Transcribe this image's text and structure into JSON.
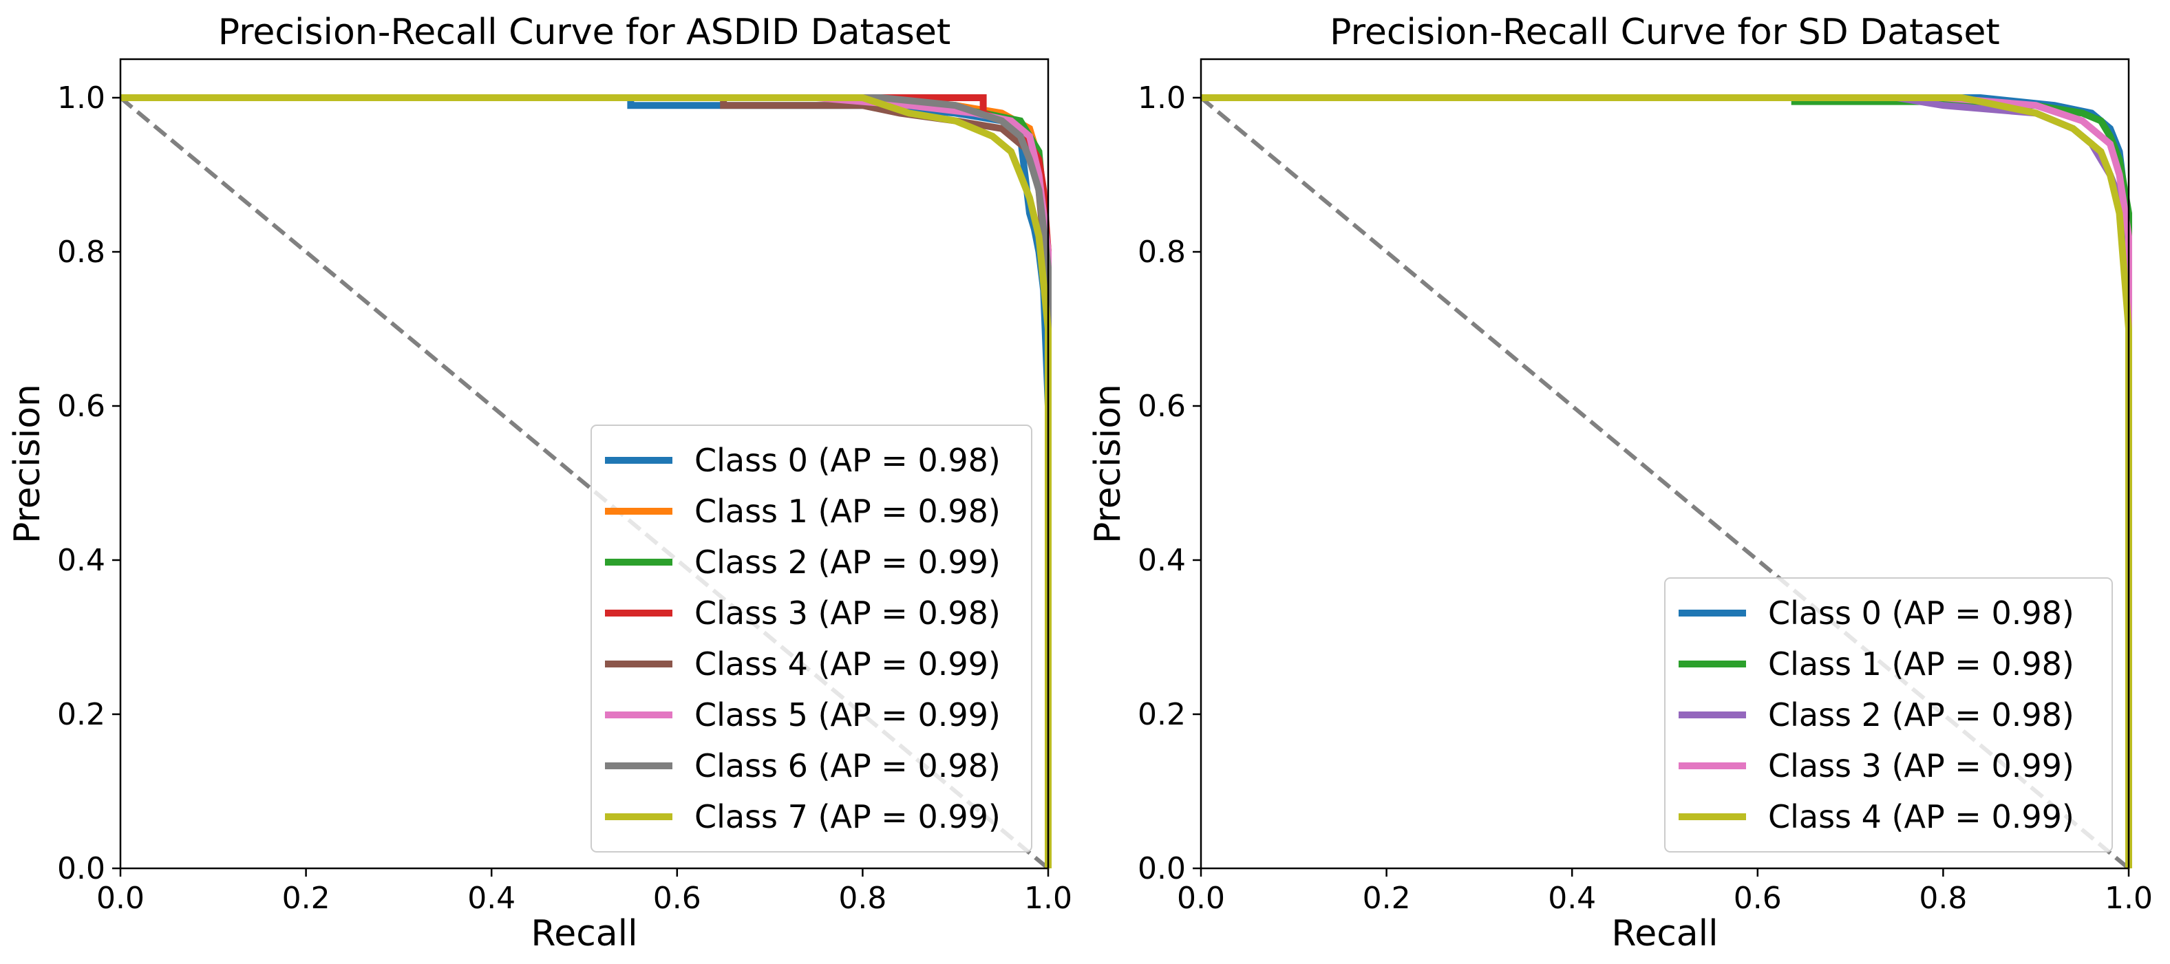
{
  "chart_data": [
    {
      "type": "line",
      "title": "Precision-Recall Curve for ASDID Dataset",
      "xlabel": "Recall",
      "ylabel": "Precision",
      "xlim": [
        0.0,
        1.0
      ],
      "ylim": [
        0.0,
        1.05
      ],
      "xticks": [
        "0.0",
        "0.2",
        "0.4",
        "0.6",
        "0.8",
        "1.0"
      ],
      "yticks": [
        "0.0",
        "0.2",
        "0.4",
        "0.6",
        "0.8",
        "1.0"
      ],
      "xtick_values": [
        0.0,
        0.2,
        0.4,
        0.6,
        0.8,
        1.0
      ],
      "ytick_values": [
        0.0,
        0.2,
        0.4,
        0.6,
        0.8,
        1.0
      ],
      "grid": false,
      "legend_position": "lower-right",
      "baseline": {
        "name": "chance",
        "style": "dashed",
        "color": "#808080",
        "x": [
          0.0,
          1.0
        ],
        "y": [
          1.0,
          0.0
        ]
      },
      "series": [
        {
          "name": "Class 0 (AP = 0.98)",
          "color": "#1f77b4",
          "x": [
            0.0,
            0.55,
            0.55,
            0.7,
            0.8,
            0.9,
            0.95,
            0.97,
            0.975,
            0.98,
            0.985,
            0.99,
            0.995,
            1.0,
            1.0
          ],
          "y": [
            1.0,
            1.0,
            0.99,
            0.99,
            0.99,
            0.98,
            0.97,
            0.95,
            0.9,
            0.85,
            0.83,
            0.8,
            0.75,
            0.6,
            0.0
          ]
        },
        {
          "name": "Class 1 (AP = 0.98)",
          "color": "#ff7f0e",
          "x": [
            0.0,
            0.8,
            0.9,
            0.95,
            0.98,
            0.99,
            1.0,
            1.0
          ],
          "y": [
            1.0,
            1.0,
            0.99,
            0.98,
            0.96,
            0.92,
            0.75,
            0.0
          ]
        },
        {
          "name": "Class 2 (AP = 0.99)",
          "color": "#2ca02c",
          "x": [
            0.0,
            0.8,
            0.88,
            0.93,
            0.97,
            0.99,
            1.0,
            1.0
          ],
          "y": [
            1.0,
            1.0,
            0.99,
            0.98,
            0.97,
            0.93,
            0.8,
            0.0
          ]
        },
        {
          "name": "Class 3 (AP = 0.98)",
          "color": "#d62728",
          "x": [
            0.0,
            0.84,
            0.93,
            0.93,
            0.95,
            0.97,
            0.99,
            0.995,
            1.0,
            1.0
          ],
          "y": [
            1.0,
            1.0,
            1.0,
            0.98,
            0.97,
            0.96,
            0.92,
            0.88,
            0.8,
            0.0
          ]
        },
        {
          "name": "Class 4 (AP = 0.99)",
          "color": "#8c564b",
          "x": [
            0.0,
            0.65,
            0.65,
            0.8,
            0.84,
            0.9,
            0.95,
            0.98,
            0.99,
            1.0,
            1.0
          ],
          "y": [
            1.0,
            1.0,
            0.99,
            0.99,
            0.98,
            0.97,
            0.96,
            0.93,
            0.88,
            0.75,
            0.0
          ]
        },
        {
          "name": "Class 5 (AP = 0.99)",
          "color": "#e377c2",
          "x": [
            0.0,
            0.75,
            0.85,
            0.92,
            0.96,
            0.98,
            0.99,
            1.0,
            1.0
          ],
          "y": [
            1.0,
            1.0,
            0.99,
            0.98,
            0.97,
            0.95,
            0.9,
            0.8,
            0.0
          ]
        },
        {
          "name": "Class 6 (AP = 0.98)",
          "color": "#7f7f7f",
          "x": [
            0.0,
            0.71,
            0.82,
            0.9,
            0.95,
            0.97,
            0.98,
            0.99,
            1.0,
            1.0
          ],
          "y": [
            1.0,
            1.0,
            1.0,
            0.99,
            0.97,
            0.95,
            0.92,
            0.88,
            0.78,
            0.0
          ]
        },
        {
          "name": "Class 7 (AP = 0.99)",
          "color": "#bcbd22",
          "x": [
            0.0,
            0.8,
            0.85,
            0.9,
            0.94,
            0.96,
            0.97,
            0.98,
            0.99,
            1.0,
            1.0
          ],
          "y": [
            1.0,
            1.0,
            0.98,
            0.97,
            0.95,
            0.93,
            0.9,
            0.87,
            0.82,
            0.7,
            0.0
          ]
        }
      ]
    },
    {
      "type": "line",
      "title": "Precision-Recall Curve for SD Dataset",
      "xlabel": "Recall",
      "ylabel": "Precision",
      "xlim": [
        0.0,
        1.0
      ],
      "ylim": [
        0.0,
        1.05
      ],
      "xticks": [
        "0.0",
        "0.2",
        "0.4",
        "0.6",
        "0.8",
        "1.0"
      ],
      "yticks": [
        "0.0",
        "0.2",
        "0.4",
        "0.6",
        "0.8",
        "1.0"
      ],
      "xtick_values": [
        0.0,
        0.2,
        0.4,
        0.6,
        0.8,
        1.0
      ],
      "ytick_values": [
        0.0,
        0.2,
        0.4,
        0.6,
        0.8,
        1.0
      ],
      "grid": false,
      "legend_position": "lower-right",
      "baseline": {
        "name": "chance",
        "style": "dashed",
        "color": "#808080",
        "x": [
          0.0,
          1.0
        ],
        "y": [
          1.0,
          0.0
        ]
      },
      "series": [
        {
          "name": "Class 0 (AP = 0.98)",
          "color": "#1f77b4",
          "x": [
            0.0,
            0.84,
            0.92,
            0.96,
            0.98,
            0.99,
            0.995,
            1.0,
            1.0
          ],
          "y": [
            1.0,
            1.0,
            0.99,
            0.98,
            0.96,
            0.93,
            0.88,
            0.8,
            0.0
          ]
        },
        {
          "name": "Class 1 (AP = 0.98)",
          "color": "#2ca02c",
          "x": [
            0.0,
            0.64,
            0.64,
            0.8,
            0.9,
            0.95,
            0.97,
            0.98,
            0.99,
            1.0,
            1.0
          ],
          "y": [
            1.0,
            1.0,
            0.995,
            0.995,
            0.99,
            0.98,
            0.97,
            0.95,
            0.92,
            0.85,
            0.0
          ]
        },
        {
          "name": "Class 2 (AP = 0.98)",
          "color": "#9467bd",
          "x": [
            0.0,
            0.75,
            0.8,
            0.85,
            0.9,
            0.94,
            0.96,
            0.98,
            0.99,
            1.0,
            1.0
          ],
          "y": [
            1.0,
            1.0,
            0.99,
            0.985,
            0.98,
            0.96,
            0.94,
            0.9,
            0.87,
            0.8,
            0.0
          ]
        },
        {
          "name": "Class 3 (AP = 0.99)",
          "color": "#e377c2",
          "x": [
            0.0,
            0.8,
            0.9,
            0.95,
            0.98,
            0.99,
            1.0,
            1.0
          ],
          "y": [
            1.0,
            1.0,
            0.99,
            0.97,
            0.94,
            0.9,
            0.82,
            0.0
          ]
        },
        {
          "name": "Class 4 (AP = 0.99)",
          "color": "#bcbd22",
          "x": [
            0.0,
            0.82,
            0.9,
            0.94,
            0.97,
            0.98,
            0.99,
            1.0,
            1.0
          ],
          "y": [
            1.0,
            1.0,
            0.98,
            0.96,
            0.93,
            0.9,
            0.85,
            0.7,
            0.0
          ]
        }
      ]
    }
  ]
}
